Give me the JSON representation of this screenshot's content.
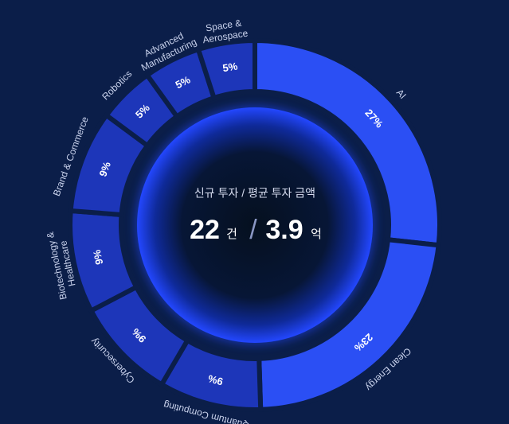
{
  "chart_data": {
    "type": "donut",
    "categories": [
      "AI",
      "Clean Energy",
      "Quantum Computing",
      "Cybersecurity",
      "Biotechnology & Healthcare",
      "Brand & Commerce",
      "Robotics",
      "Advanced Manufacturing",
      "Space & Aerospace"
    ],
    "values": [
      27,
      23,
      9,
      9,
      9,
      9,
      5,
      5,
      5
    ],
    "value_labels": [
      "27%",
      "23%",
      "9%",
      "9%",
      "9%",
      "9%",
      "5%",
      "5%",
      "5%"
    ],
    "colors": [
      "#2b4ff4",
      "#2b4ff4",
      "#1d36b9",
      "#1d36b9",
      "#1d36b9",
      "#1d36b9",
      "#1d36b9",
      "#1d36b9",
      "#1d36b9"
    ],
    "center": {
      "caption": "신규 투자 / 평균 투자 금액",
      "count": 22,
      "count_unit": "건",
      "separator": "/",
      "amount": 3.9,
      "amount_unit": "억"
    }
  }
}
